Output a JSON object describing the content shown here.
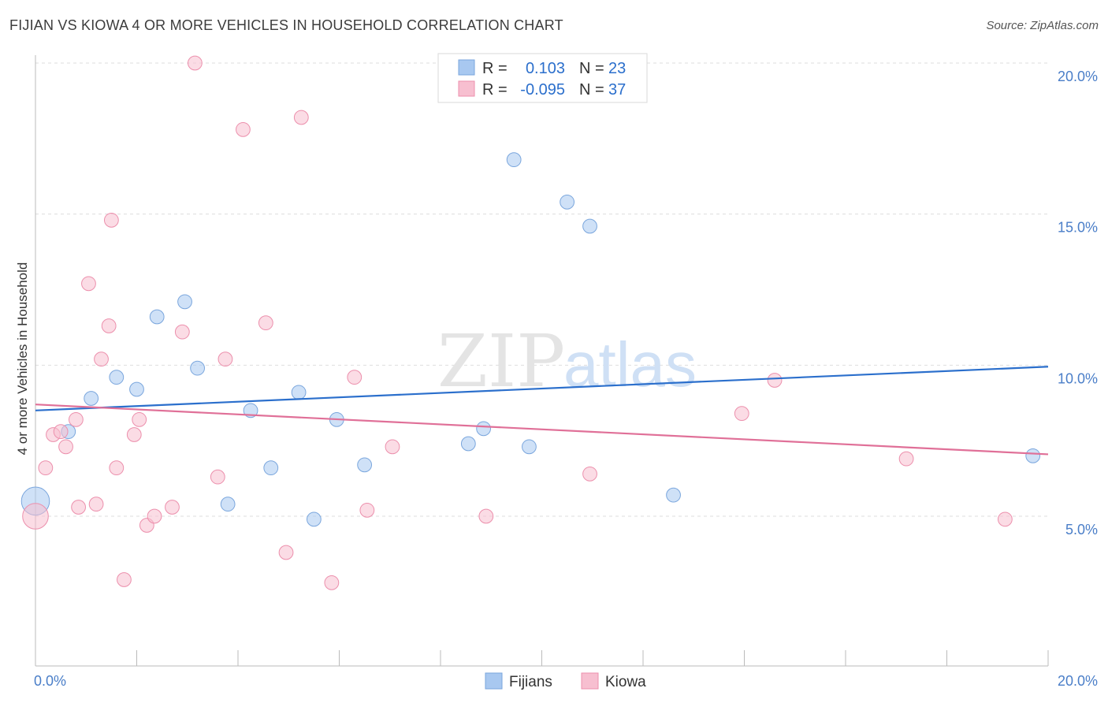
{
  "title": "FIJIAN VS KIOWA 4 OR MORE VEHICLES IN HOUSEHOLD CORRELATION CHART",
  "source": "Source: ZipAtlas.com",
  "watermark": {
    "zip": "ZIP",
    "atlas": "atlas"
  },
  "chart_data": {
    "type": "scatter",
    "title": "FIJIAN VS KIOWA 4 OR MORE VEHICLES IN HOUSEHOLD CORRELATION CHART",
    "xlabel": "",
    "ylabel": "4 or more Vehicles in Household",
    "xlim": [
      0,
      20
    ],
    "ylim": [
      0,
      20.8
    ],
    "x_tick_labels": {
      "left": "0.0%",
      "right": "20.0%"
    },
    "y_ticks": [
      {
        "value": 5,
        "label": "5.0%"
      },
      {
        "value": 10,
        "label": "10.0%"
      },
      {
        "value": 15,
        "label": "15.0%"
      },
      {
        "value": 20,
        "label": "20.0%"
      }
    ],
    "grid": true,
    "legend_top": [
      {
        "r_label": "R =",
        "r_value": "0.103",
        "n_label": "N =",
        "n_value": "23"
      },
      {
        "r_label": "R =",
        "r_value": "-0.095",
        "n_label": "N =",
        "n_value": "37"
      }
    ],
    "series": [
      {
        "name": "Fijians",
        "color": "#a8c8f0",
        "stroke": "#7aa6dd",
        "line_color": "#2b6fcc",
        "trend": [
          [
            0,
            8.5
          ],
          [
            20,
            9.95
          ]
        ],
        "points": [
          [
            0.0,
            5.5,
            24
          ],
          [
            0.65,
            7.8,
            12
          ],
          [
            1.1,
            8.9,
            12
          ],
          [
            1.6,
            9.6,
            12
          ],
          [
            2.0,
            9.2,
            12
          ],
          [
            2.4,
            11.6,
            12
          ],
          [
            2.95,
            12.1,
            12
          ],
          [
            3.2,
            9.9,
            12
          ],
          [
            3.8,
            5.4,
            12
          ],
          [
            4.25,
            8.5,
            12
          ],
          [
            4.65,
            6.6,
            12
          ],
          [
            5.2,
            9.1,
            12
          ],
          [
            5.5,
            4.9,
            12
          ],
          [
            5.95,
            8.2,
            12
          ],
          [
            6.5,
            6.7,
            12
          ],
          [
            8.55,
            7.4,
            12
          ],
          [
            8.85,
            7.9,
            12
          ],
          [
            9.45,
            16.8,
            12
          ],
          [
            9.75,
            7.3,
            12
          ],
          [
            10.5,
            15.4,
            12
          ],
          [
            10.95,
            14.6,
            12
          ],
          [
            12.6,
            5.7,
            12
          ],
          [
            19.7,
            7.0,
            12
          ]
        ]
      },
      {
        "name": "Kiowa",
        "color": "#f7bfd0",
        "stroke": "#ec8fac",
        "line_color": "#e07098",
        "trend": [
          [
            0,
            8.7
          ],
          [
            20,
            7.05
          ]
        ],
        "points": [
          [
            0.0,
            5.0,
            22
          ],
          [
            0.2,
            6.6,
            12
          ],
          [
            0.35,
            7.7,
            12
          ],
          [
            0.5,
            7.8,
            12
          ],
          [
            0.6,
            7.3,
            12
          ],
          [
            0.8,
            8.2,
            12
          ],
          [
            0.85,
            5.3,
            12
          ],
          [
            1.05,
            12.7,
            12
          ],
          [
            1.2,
            5.4,
            12
          ],
          [
            1.3,
            10.2,
            12
          ],
          [
            1.45,
            11.3,
            12
          ],
          [
            1.5,
            14.8,
            12
          ],
          [
            1.6,
            6.6,
            12
          ],
          [
            1.75,
            2.9,
            12
          ],
          [
            1.95,
            7.7,
            12
          ],
          [
            2.05,
            8.2,
            12
          ],
          [
            2.2,
            4.7,
            12
          ],
          [
            2.35,
            5.0,
            12
          ],
          [
            2.7,
            5.3,
            12
          ],
          [
            2.9,
            11.1,
            12
          ],
          [
            3.15,
            20.0,
            12
          ],
          [
            3.6,
            6.3,
            12
          ],
          [
            3.75,
            10.2,
            12
          ],
          [
            4.1,
            17.8,
            12
          ],
          [
            4.55,
            11.4,
            12
          ],
          [
            4.95,
            3.8,
            12
          ],
          [
            5.25,
            18.2,
            12
          ],
          [
            5.85,
            2.8,
            12
          ],
          [
            6.3,
            9.6,
            12
          ],
          [
            6.55,
            5.2,
            12
          ],
          [
            7.05,
            7.3,
            12
          ],
          [
            8.9,
            5.0,
            12
          ],
          [
            10.95,
            6.4,
            12
          ],
          [
            13.95,
            8.4,
            12
          ],
          [
            14.6,
            9.5,
            12
          ],
          [
            17.2,
            6.9,
            12
          ],
          [
            19.15,
            4.9,
            12
          ]
        ]
      }
    ]
  },
  "colors": {
    "axis_tick_text": "#4a7ec8",
    "grid": "#dddddd"
  }
}
